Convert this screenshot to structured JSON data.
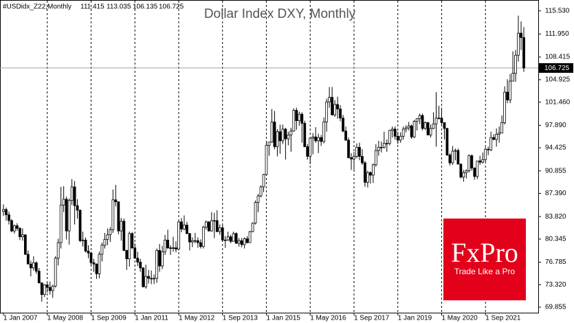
{
  "chart_data": {
    "type": "candlestick",
    "symbol": "#USDidx_Z22,Monthly",
    "title": "Dollar Index DXY, Monthly",
    "categories": [
      "1 Jan 2007",
      null,
      null,
      null,
      null,
      null,
      null,
      null,
      null,
      null,
      null,
      null,
      null,
      null,
      null,
      null,
      "1 May 2008",
      null,
      null,
      null,
      null,
      null,
      null,
      null,
      null,
      null,
      null,
      null,
      null,
      null,
      null,
      null,
      "1 Sep 2009",
      null,
      null,
      null,
      null,
      null,
      null,
      null,
      null,
      null,
      null,
      null,
      null,
      null,
      null,
      null,
      "1 Jan 2011",
      null,
      null,
      null,
      null,
      null,
      null,
      null,
      null,
      null,
      null,
      null,
      null,
      null,
      null,
      null,
      "1 May 2012",
      null,
      null,
      null,
      null,
      null,
      null,
      null,
      null,
      null,
      null,
      null,
      null,
      null,
      null,
      null,
      "1 Sep 2013",
      null,
      null,
      null,
      null,
      null,
      null,
      null,
      null,
      null,
      null,
      null,
      null,
      null,
      null,
      null,
      "1 Jan 2015",
      null,
      null,
      null,
      null,
      null,
      null,
      null,
      null,
      null,
      null,
      null,
      null,
      null,
      null,
      null,
      "1 May 2016",
      null,
      null,
      null,
      null,
      null,
      null,
      null,
      null,
      null,
      null,
      null,
      null,
      null,
      null,
      null,
      "1 Sep 2017",
      null,
      null,
      null,
      null,
      null,
      null,
      null,
      null,
      null,
      null,
      null,
      null,
      null,
      null,
      null,
      "1 Jan 2019",
      null,
      null,
      null,
      null,
      null,
      null,
      null,
      null,
      null,
      null,
      null,
      null,
      null,
      null,
      null,
      "1 May 2020",
      null,
      null,
      null,
      null,
      null,
      null,
      null,
      null,
      null,
      null,
      null,
      null,
      null,
      null,
      null,
      "1 Sep 2021",
      null,
      null,
      null,
      null,
      null,
      null,
      null,
      null,
      null,
      null,
      null,
      null,
      null,
      null
    ],
    "open": [
      84.6,
      84.9,
      84.1,
      83.2,
      81.6,
      82.4,
      82.0,
      80.7,
      81.0,
      78.0,
      76.5,
      75.9,
      76.7,
      75.4,
      73.6,
      71.8,
      73.3,
      72.9,
      72.4,
      73.1,
      77.4,
      79.8,
      85.6,
      86.5,
      81.6,
      86.3,
      88.4,
      85.5,
      84.8,
      80.1,
      80.2,
      78.5,
      78.2,
      76.7,
      76.5,
      75.0,
      78.0,
      79.4,
      80.3,
      81.0,
      81.8,
      86.4,
      86.1,
      81.6,
      83.1,
      78.6,
      77.3,
      81.2,
      79.0,
      77.4,
      76.8,
      75.9,
      73.0,
      74.6,
      74.3,
      74.2,
      74.3,
      78.6,
      76.2,
      78.4,
      80.2,
      79.0,
      78.9,
      79.0,
      78.8,
      83.0,
      81.9,
      82.5,
      81.2,
      79.9,
      80.1,
      80.1,
      79.8,
      79.2,
      82.2,
      83.0,
      81.6,
      83.2,
      83.2,
      81.5,
      82.1,
      80.2,
      80.2,
      80.7,
      80.0,
      81.2,
      79.7,
      80.1,
      79.5,
      80.4,
      79.8,
      81.5,
      82.8,
      86.0,
      87.0,
      88.4,
      90.3,
      94.8,
      95.3,
      98.4,
      94.6,
      96.9,
      95.5,
      97.3,
      95.8,
      96.4,
      97.0,
      100.2,
      98.6,
      99.6,
      98.2,
      94.6,
      93.1,
      95.9,
      96.1,
      95.5,
      96.0,
      95.4,
      98.4,
      101.5,
      102.2,
      99.5,
      101.1,
      100.4,
      99.0,
      97.0,
      95.6,
      92.9,
      92.7,
      93.1,
      94.5,
      93.1,
      92.1,
      89.1,
      90.6,
      90.2,
      91.8,
      94.0,
      94.5,
      94.5,
      95.1,
      95.1,
      97.1,
      97.3,
      96.2,
      95.6,
      96.2,
      97.3,
      97.5,
      97.8,
      96.1,
      98.5,
      98.9,
      99.4,
      97.4,
      98.3,
      96.4,
      97.4,
      98.1,
      99.0,
      99.0,
      98.3,
      97.4,
      93.3,
      92.1,
      93.9,
      94.0,
      91.9,
      89.9,
      90.6,
      90.9,
      93.2,
      91.3,
      90.0,
      92.4,
      92.2,
      92.6,
      94.2,
      94.1,
      96.0,
      95.7,
      96.5,
      96.7,
      98.3,
      103.0,
      101.8,
      104.7,
      105.9,
      108.7,
      112.1,
      111.415
    ],
    "high": [
      85.7,
      85.2,
      84.6,
      83.4,
      82.6,
      82.8,
      82.2,
      82.0,
      81.1,
      78.6,
      77.0,
      77.7,
      76.9,
      75.9,
      73.6,
      73.4,
      73.6,
      73.8,
      73.3,
      77.7,
      80.4,
      88.4,
      88.5,
      86.9,
      86.6,
      89.6,
      89.3,
      86.5,
      84.9,
      81.5,
      80.6,
      79.4,
      78.4,
      77.3,
      76.6,
      78.4,
      79.8,
      81.3,
      82.0,
      82.2,
      88.0,
      88.7,
      86.1,
      83.6,
      83.5,
      78.7,
      81.5,
      81.4,
      79.7,
      78.4,
      77.3,
      76.0,
      76.4,
      75.6,
      75.5,
      74.9,
      78.9,
      79.6,
      79.3,
      81.0,
      81.8,
      79.4,
      80.7,
      80.0,
      83.1,
      83.6,
      84.0,
      83.0,
      81.3,
      80.6,
      81.3,
      80.6,
      80.3,
      82.4,
      83.2,
      83.1,
      84.5,
      84.4,
      84.8,
      82.6,
      82.5,
      80.8,
      81.5,
      81.0,
      81.5,
      81.4,
      80.5,
      80.5,
      80.6,
      80.8,
      81.6,
      82.9,
      86.3,
      87.3,
      88.6,
      90.4,
      95.5,
      95.3,
      100.4,
      100.1,
      97.3,
      98.0,
      98.0,
      97.5,
      96.9,
      97.5,
      100.5,
      100.6,
      100.0,
      99.9,
      98.6,
      95.0,
      96.0,
      96.7,
      97.6,
      96.6,
      96.4,
      99.1,
      102.0,
      103.8,
      103.8,
      101.8,
      102.3,
      101.0,
      99.5,
      97.7,
      96.0,
      93.6,
      93.8,
      95.1,
      95.2,
      94.2,
      92.4,
      90.9,
      90.8,
      92.0,
      95.0,
      95.5,
      95.4,
      96.9,
      95.7,
      97.2,
      97.7,
      97.7,
      96.9,
      96.8,
      97.7,
      97.9,
      98.4,
      98.0,
      98.7,
      99.0,
      99.7,
      99.7,
      98.5,
      98.4,
      98.0,
      99.9,
      103.0,
      100.9,
      100.6,
      98.3,
      97.5,
      93.6,
      94.7,
      94.3,
      94.3,
      92.0,
      91.0,
      91.1,
      93.4,
      93.4,
      91.4,
      92.4,
      93.2,
      93.7,
      94.5,
      94.6,
      96.9,
      96.5,
      97.4,
      97.7,
      99.4,
      103.9,
      105.0,
      105.8,
      109.3,
      109.5,
      114.8,
      113.9,
      113.035
    ],
    "low": [
      83.9,
      83.2,
      82.6,
      81.4,
      81.2,
      81.6,
      80.2,
      80.1,
      77.9,
      76.5,
      74.6,
      75.5,
      75.0,
      73.5,
      70.7,
      71.4,
      72.1,
      71.8,
      71.3,
      72.9,
      76.3,
      78.9,
      84.5,
      80.3,
      79.5,
      85.6,
      82.6,
      83.5,
      79.9,
      79.2,
      78.3,
      77.4,
      76.1,
      75.3,
      74.2,
      74.3,
      76.9,
      78.9,
      79.4,
      79.9,
      81.3,
      85.4,
      81.1,
      80.1,
      78.5,
      75.6,
      76.1,
      78.8,
      77.3,
      76.2,
      75.3,
      72.9,
      72.7,
      73.5,
      73.4,
      73.4,
      73.6,
      75.3,
      75.7,
      77.9,
      78.8,
      77.9,
      78.4,
      78.3,
      78.6,
      81.4,
      81.7,
      81.1,
      78.6,
      79.1,
      79.7,
      79.0,
      78.9,
      78.9,
      81.8,
      81.5,
      81.5,
      80.5,
      81.4,
      81.0,
      80.0,
      79.0,
      80.1,
      79.7,
      80.0,
      79.6,
      79.2,
      79.1,
      78.9,
      79.7,
      79.8,
      81.4,
      82.6,
      84.5,
      86.8,
      87.6,
      90.1,
      93.2,
      95.2,
      94.2,
      93.1,
      93.5,
      95.0,
      92.6,
      94.8,
      93.8,
      96.9,
      97.2,
      97.8,
      95.2,
      94.5,
      92.6,
      91.9,
      93.4,
      95.2,
      93.6,
      94.7,
      95.1,
      96.9,
      100.6,
      99.4,
      99.2,
      98.9,
      98.5,
      96.8,
      95.5,
      92.8,
      91.0,
      91.0,
      92.8,
      92.5,
      91.8,
      88.4,
      88.3,
      88.9,
      89.0,
      91.5,
      93.2,
      93.7,
      94.3,
      93.8,
      94.8,
      96.0,
      95.7,
      95.0,
      95.2,
      95.7,
      96.8,
      97.1,
      95.8,
      95.9,
      97.1,
      98.1,
      97.1,
      97.2,
      96.4,
      96.0,
      97.3,
      94.6,
      98.8,
      97.9,
      95.7,
      93.2,
      91.7,
      91.8,
      92.5,
      91.9,
      89.7,
      89.2,
      89.7,
      90.6,
      90.9,
      89.5,
      89.6,
      91.8,
      92.0,
      92.3,
      93.3,
      93.9,
      95.6,
      94.6,
      95.2,
      97.1,
      98.0,
      101.3,
      101.3,
      104.7,
      104.6,
      107.7,
      109.5,
      106.135
    ],
    "close": [
      84.9,
      84.1,
      83.2,
      81.6,
      82.4,
      82.0,
      80.7,
      81.0,
      78.0,
      76.5,
      75.9,
      76.7,
      75.4,
      73.6,
      71.8,
      73.3,
      72.9,
      72.4,
      73.1,
      77.4,
      79.8,
      85.6,
      86.5,
      81.6,
      86.3,
      88.4,
      85.5,
      84.8,
      80.1,
      80.2,
      78.5,
      78.2,
      76.7,
      76.5,
      75.0,
      78.0,
      79.4,
      80.3,
      81.0,
      81.8,
      86.4,
      86.1,
      81.6,
      83.1,
      78.6,
      77.3,
      81.2,
      79.0,
      77.4,
      76.8,
      75.9,
      73.0,
      74.6,
      74.3,
      74.2,
      74.3,
      78.6,
      76.2,
      78.4,
      80.2,
      79.0,
      78.9,
      79.0,
      78.8,
      83.0,
      81.9,
      82.5,
      81.2,
      79.9,
      80.1,
      80.1,
      79.8,
      79.2,
      82.2,
      83.0,
      81.6,
      83.2,
      83.2,
      81.5,
      82.1,
      80.2,
      80.2,
      80.7,
      80.0,
      81.2,
      79.7,
      80.1,
      79.5,
      80.4,
      79.8,
      81.5,
      82.8,
      86.0,
      87.0,
      88.4,
      90.3,
      94.8,
      95.3,
      98.4,
      94.6,
      96.9,
      95.5,
      97.3,
      95.8,
      96.4,
      97.0,
      100.2,
      98.6,
      99.6,
      98.2,
      94.6,
      93.1,
      95.9,
      96.1,
      95.5,
      96.0,
      95.4,
      98.4,
      101.5,
      102.2,
      99.5,
      101.1,
      100.4,
      99.0,
      97.0,
      95.6,
      92.9,
      92.7,
      93.1,
      94.5,
      93.1,
      92.1,
      89.1,
      90.6,
      90.2,
      91.8,
      94.0,
      94.5,
      94.5,
      95.1,
      95.1,
      97.1,
      97.3,
      96.2,
      95.6,
      96.2,
      97.3,
      97.5,
      97.8,
      96.1,
      98.5,
      98.9,
      99.4,
      97.4,
      98.3,
      96.4,
      97.4,
      98.1,
      99.0,
      99.0,
      98.3,
      97.4,
      93.3,
      92.1,
      93.9,
      94.0,
      91.9,
      89.9,
      90.6,
      90.9,
      93.2,
      91.3,
      90.0,
      92.4,
      92.2,
      92.6,
      94.2,
      94.1,
      96.0,
      95.7,
      96.5,
      96.7,
      98.3,
      103.0,
      101.8,
      104.7,
      105.9,
      108.7,
      112.1,
      111.415,
      106.725
    ],
    "up_color": "#ffffff",
    "down_color": "#000000",
    "line_color": "#000000",
    "price_line_color": "#a0a0a0",
    "ylim": [
      69.0,
      117.1
    ],
    "yticks": [
      {
        "value": 69.855,
        "label": "69.855"
      },
      {
        "value": 73.32,
        "label": "73.320"
      },
      {
        "value": 76.785,
        "label": "76.785"
      },
      {
        "value": 80.345,
        "label": "80.345"
      },
      {
        "value": 83.82,
        "label": "83.820"
      },
      {
        "value": 87.39,
        "label": "87.390"
      },
      {
        "value": 90.855,
        "label": "90.855"
      },
      {
        "value": 94.425,
        "label": "94.425"
      },
      {
        "value": 97.89,
        "label": "97.890"
      },
      {
        "value": 101.46,
        "label": "101.460"
      },
      {
        "value": 104.925,
        "label": "104.925"
      },
      {
        "value": 108.415,
        "label": "108.415"
      },
      {
        "value": 111.95,
        "label": "111.950"
      },
      {
        "value": 115.53,
        "label": "115.530"
      }
    ],
    "xgrid": true
  },
  "watermark": {
    "brand": "FxPro",
    "tagline": "Trade Like a Pro",
    "color": "#e3001b"
  }
}
